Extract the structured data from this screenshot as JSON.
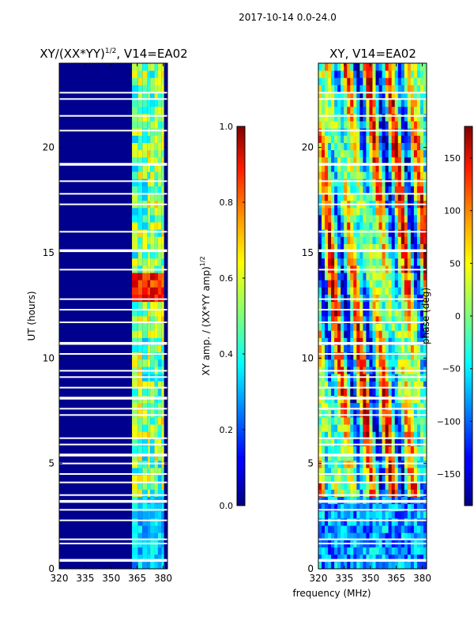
{
  "suptitle": "2017-10-14 0.0-24.0",
  "chart_data": [
    {
      "type": "heatmap",
      "title_text": "XY/(XX*YY)",
      "title_exponent": "1/2",
      "title_suffix": ", V14=EA02",
      "ylabel": "UT (hours)",
      "xlim": [
        320,
        382.5
      ],
      "ylim": [
        0,
        24
      ],
      "xticks": [
        320,
        335,
        350,
        365,
        380
      ],
      "yticks": [
        0,
        5,
        10,
        15,
        20
      ],
      "colorbar": {
        "label_text": "XY amp. / (XX*YY amp)",
        "label_exponent": "1/2",
        "range": [
          0.0,
          1.0
        ],
        "ticks": [
          "0.0",
          "0.2",
          "0.4",
          "0.6",
          "0.8",
          "1.0"
        ],
        "tick_values": [
          0.0,
          0.2,
          0.4,
          0.6,
          0.8,
          1.0
        ],
        "colormap": "jet"
      },
      "gap_hours": [
        0.4,
        1.2,
        1.4,
        2.3,
        2.8,
        3.2,
        3.5,
        4.1,
        4.5,
        5.0,
        5.4,
        5.9,
        6.2,
        7.3,
        7.6,
        8.1,
        8.6,
        9.1,
        9.4,
        10.2,
        10.7,
        11.7,
        12.3,
        12.8,
        14.2,
        15.1,
        16.0,
        17.3,
        17.8,
        18.4,
        19.2,
        20.8,
        21.5,
        22.3,
        22.6
      ]
    },
    {
      "type": "heatmap",
      "title_text": "XY, V14=EA02",
      "xlabel": "frequency (MHz)",
      "xlim": [
        320,
        382.5
      ],
      "ylim": [
        0,
        24
      ],
      "xticks": [
        320,
        335,
        350,
        365,
        380
      ],
      "yticks": [
        0,
        5,
        10,
        15,
        20
      ],
      "colorbar": {
        "label_text": "phase (deg)",
        "range": [
          -180,
          180
        ],
        "ticks": [
          "−150",
          "−100",
          "−50",
          "0",
          "50",
          "100",
          "150"
        ],
        "tick_values": [
          -150,
          -100,
          -50,
          0,
          50,
          100,
          150
        ],
        "colormap": "jet"
      },
      "gap_hours": [
        0.4,
        1.2,
        1.4,
        2.3,
        2.8,
        3.2,
        3.5,
        4.1,
        4.5,
        5.0,
        5.4,
        5.9,
        6.2,
        7.3,
        7.6,
        8.1,
        8.6,
        9.1,
        9.4,
        10.2,
        10.7,
        11.7,
        12.3,
        12.8,
        14.2,
        15.1,
        16.0,
        17.3,
        17.8,
        18.4,
        19.2,
        20.8,
        21.5,
        22.3,
        22.6
      ]
    }
  ]
}
